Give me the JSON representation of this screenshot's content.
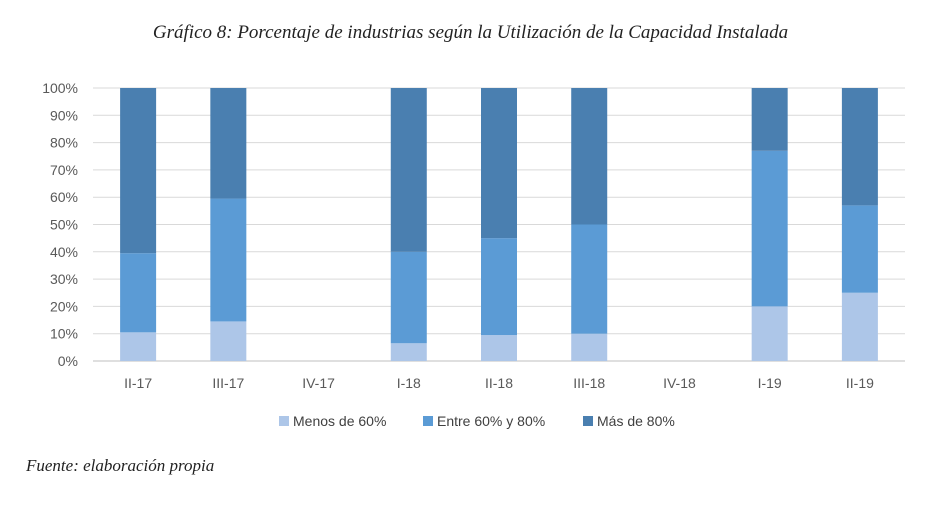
{
  "chart_data": {
    "type": "bar",
    "stacked": true,
    "title": "Gráfico 8: Porcentaje de industrias según la Utilización de la Capacidad Instalada",
    "xlabel": "",
    "ylabel": "",
    "ylim": [
      0,
      100
    ],
    "y_ticks": [
      "0%",
      "10%",
      "20%",
      "30%",
      "40%",
      "50%",
      "60%",
      "70%",
      "80%",
      "90%",
      "100%"
    ],
    "categories": [
      "II-17",
      "III-17",
      "IV-17",
      "I-18",
      "II-18",
      "III-18",
      "IV-18",
      "I-19",
      "II-19"
    ],
    "series": [
      {
        "name": "Menos de 60%",
        "color": "#adc6e8",
        "values": [
          10.5,
          14.5,
          0,
          6.5,
          9.5,
          10,
          0,
          20,
          25
        ]
      },
      {
        "name": "Entre 60% y 80%",
        "color": "#5b9bd5",
        "values": [
          29,
          45,
          0,
          33.5,
          35.5,
          40,
          0,
          57,
          32
        ]
      },
      {
        "name": "Más de 80%",
        "color": "#4a7fb0",
        "values": [
          60.5,
          40.5,
          0,
          60,
          55,
          50,
          0,
          23,
          43
        ]
      }
    ],
    "grid": true,
    "legend": "bottom"
  },
  "source": "Fuente: elaboración propia"
}
